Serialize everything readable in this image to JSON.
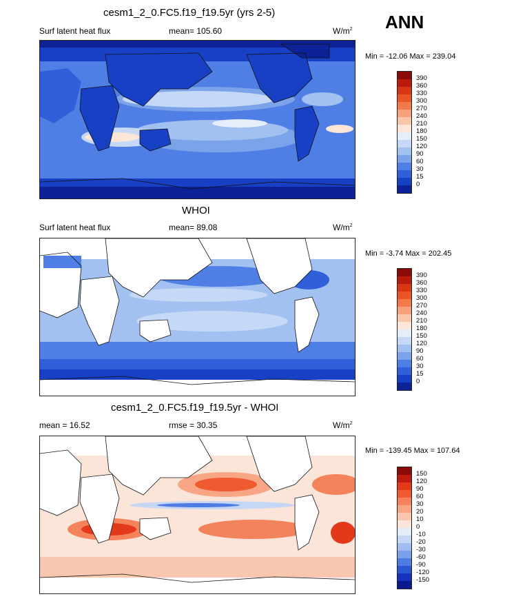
{
  "header": {
    "title": "cesm1_2_0.FC5.f19_f19.5yr (yrs 2-5)",
    "season": "ANN"
  },
  "panels": [
    {
      "title": "",
      "left_label": "Surf latent heat flux",
      "center_label": "mean= 105.60",
      "units": "W/m",
      "units_sup": "2",
      "minmax": "Min = -12.06 Max = 239.04",
      "ticks": [
        "390",
        "360",
        "330",
        "300",
        "270",
        "240",
        "210",
        "180",
        "150",
        "120",
        "90",
        "60",
        "30",
        "15",
        "0"
      ],
      "colors": [
        "#8b0a0a",
        "#b91c0c",
        "#d83615",
        "#ea5526",
        "#f27a4a",
        "#f6a07c",
        "#f8c6ab",
        "#fbe6d8",
        "#e6eefb",
        "#c5d8f6",
        "#a2c0f0",
        "#7aa3ea",
        "#4f7fe4",
        "#2f5fd9",
        "#1840c4",
        "#0c2296"
      ],
      "kind": "model"
    },
    {
      "title": "WHOI",
      "left_label": "Surf latent heat flux",
      "center_label": "mean=  89.08",
      "units": "W/m",
      "units_sup": "2",
      "minmax": "Min =  -3.74 Max = 202.45",
      "ticks": [
        "390",
        "360",
        "330",
        "300",
        "270",
        "240",
        "210",
        "180",
        "150",
        "120",
        "90",
        "60",
        "30",
        "15",
        "0"
      ],
      "colors": [
        "#8b0a0a",
        "#b91c0c",
        "#d83615",
        "#ea5526",
        "#f27a4a",
        "#f6a07c",
        "#f8c6ab",
        "#fbe6d8",
        "#e6eefb",
        "#c5d8f6",
        "#a2c0f0",
        "#7aa3ea",
        "#4f7fe4",
        "#2f5fd9",
        "#1840c4",
        "#0c2296"
      ],
      "kind": "obs"
    },
    {
      "title": "cesm1_2_0.FC5.f19_f19.5yr - WHOI",
      "left_label": "mean =  16.52",
      "center_label": "rmse =  30.35",
      "units": "W/m",
      "units_sup": "2",
      "minmax": "Min = -139.45 Max = 107.64",
      "ticks": [
        "150",
        "120",
        "90",
        "60",
        "30",
        "20",
        "10",
        "0",
        "-10",
        "-20",
        "-30",
        "-60",
        "-90",
        "-120",
        "-150"
      ],
      "colors": [
        "#8b0a0a",
        "#c11a0e",
        "#e2391a",
        "#f05a30",
        "#f4825a",
        "#f7a585",
        "#f9c7b0",
        "#fbe5d8",
        "#e5edfa",
        "#c6d7f5",
        "#a1bdf0",
        "#7aa0ea",
        "#4e7ce2",
        "#2b56d2",
        "#1634bb",
        "#0a1b8f"
      ],
      "kind": "diff"
    }
  ]
}
